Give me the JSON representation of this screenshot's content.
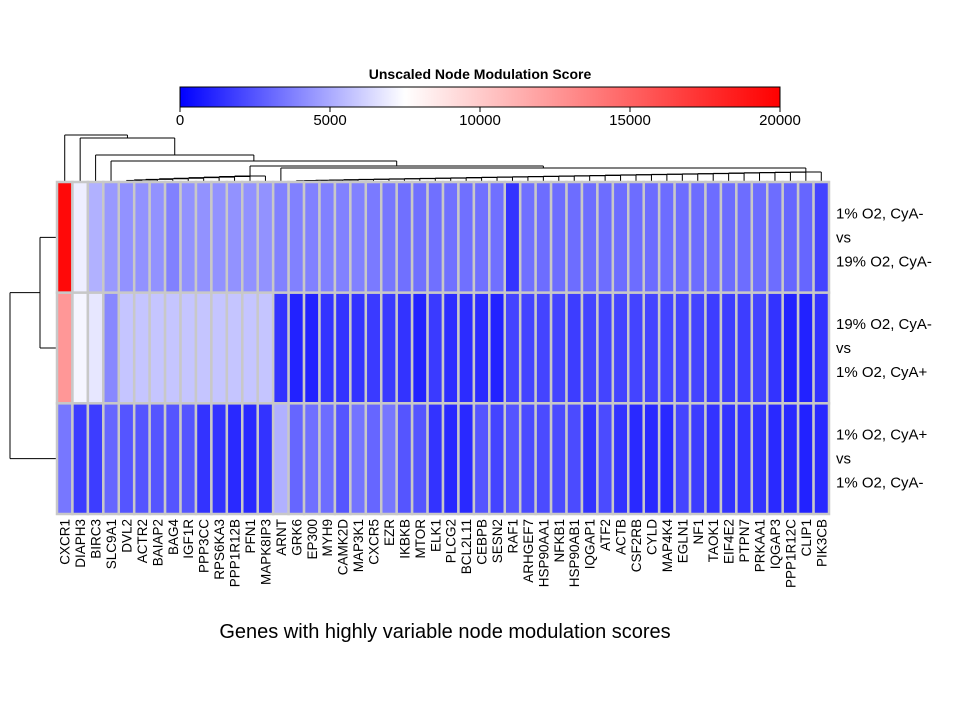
{
  "chart_data": {
    "type": "heatmap",
    "title": "Unscaled Node Modulation Score",
    "xlabel": "Genes with highly variable node modulation scores",
    "colorbar": {
      "ticks": [
        "0",
        "5000",
        "10000",
        "15000",
        "20000"
      ],
      "range": [
        0,
        20000
      ],
      "stops": [
        {
          "value": 0,
          "color": "#0000ff"
        },
        {
          "value": 7500,
          "color": "#ffffff"
        },
        {
          "value": 17300,
          "color": "#ff3333"
        },
        {
          "value": 20000,
          "color": "#ff0000"
        }
      ]
    },
    "rows": [
      {
        "label_lines": [
          "1% O2, CyA-",
          "vs",
          "19% O2, CyA-"
        ]
      },
      {
        "label_lines": [
          "19% O2, CyA-",
          "vs",
          "1% O2, CyA+"
        ]
      },
      {
        "label_lines": [
          "1% O2, CyA+",
          "vs",
          "1% O2, CyA-"
        ]
      }
    ],
    "columns": [
      "CXCR1",
      "DIAPH3",
      "BIRC3",
      "SLC9A1",
      "DVL2",
      "ACTR2",
      "BAIAP2",
      "BAG4",
      "IGF1R",
      "PPP3CC",
      "RPS6KA3",
      "PPP1R12B",
      "PFN1",
      "MAPK8IP3",
      "ARNT",
      "GRK6",
      "EP300",
      "MYH9",
      "CAMK2D",
      "MAP3K1",
      "CXCR5",
      "EZR",
      "IKBKB",
      "MTOR",
      "ELK1",
      "PLCG2",
      "BCL2L11",
      "CEBPB",
      "SESN2",
      "RAF1",
      "ARHGEF7",
      "HSP90AA1",
      "NFKB1",
      "HSP90AB1",
      "IQGAP1",
      "ATF2",
      "ACTB",
      "CSF2RB",
      "CYLD",
      "MAP4K4",
      "EGLN1",
      "NF1",
      "TAOK1",
      "EIF4E2",
      "PTPN7",
      "PRKAA1",
      "IQGAP3",
      "PPP1R12C",
      "CLIP1",
      "PIK3CB"
    ],
    "values": [
      [
        19500,
        7000,
        5200,
        4500,
        4300,
        4300,
        4300,
        3800,
        4300,
        4300,
        4300,
        4300,
        4300,
        4300,
        3800,
        3800,
        3800,
        3800,
        3800,
        3800,
        3600,
        3500,
        3300,
        3300,
        3300,
        3300,
        3300,
        3300,
        3300,
        1500,
        3300,
        3200,
        3200,
        3200,
        3200,
        3200,
        3200,
        3200,
        3200,
        3200,
        3200,
        3200,
        3200,
        3200,
        3200,
        3200,
        3200,
        3000,
        3000,
        2000
      ],
      [
        12500,
        7200,
        6800,
        4000,
        5800,
        5800,
        5800,
        5800,
        5800,
        5800,
        5800,
        5800,
        5800,
        5800,
        1500,
        1000,
        1000,
        1500,
        1500,
        1500,
        1700,
        1700,
        1500,
        1000,
        1700,
        1300,
        1300,
        1300,
        1000,
        2000,
        2000,
        2000,
        2000,
        1800,
        2000,
        2000,
        2000,
        2000,
        2000,
        2000,
        2000,
        2000,
        1800,
        1800,
        1800,
        2000,
        1500,
        1000,
        1000,
        1500
      ],
      [
        3500,
        1800,
        1800,
        3000,
        2500,
        2500,
        2500,
        2500,
        2500,
        1500,
        1500,
        1200,
        1200,
        1500,
        5200,
        3000,
        3300,
        3200,
        2500,
        3400,
        3000,
        3500,
        2500,
        2500,
        1500,
        1200,
        1200,
        2500,
        2000,
        2500,
        2200,
        2200,
        2200,
        2200,
        1500,
        2200,
        1500,
        1200,
        1200,
        1200,
        2000,
        1800,
        1500,
        1500,
        1500,
        1500,
        1200,
        1200,
        1000,
        1200
      ]
    ]
  }
}
